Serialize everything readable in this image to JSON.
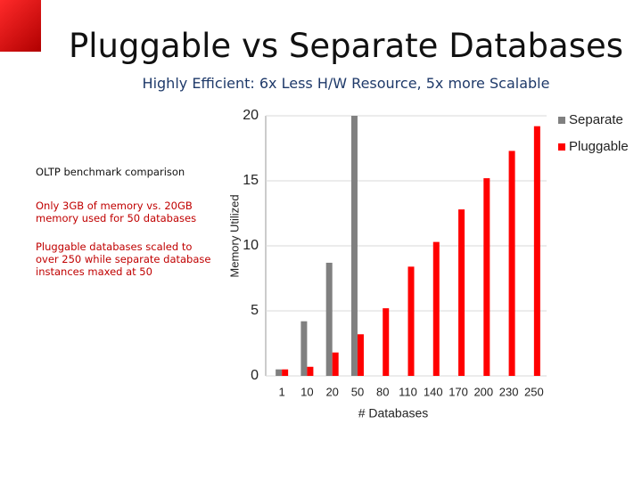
{
  "title": "Pluggable vs Separate Databases",
  "subtitle": "Highly Efficient:  6x Less H/W Resource, 5x more Scalable",
  "notes": [
    "OLTP benchmark comparison",
    "Only 3GB of memory vs. 20GB memory used for 50 databases",
    "Pluggable databases scaled to over 250 while separate database instances maxed at 50"
  ],
  "chart_data": {
    "type": "bar",
    "x_label": "# Databases",
    "y_label": "Memory Utilized",
    "categories": [
      "1",
      "10",
      "20",
      "50",
      "80",
      "110",
      "140",
      "170",
      "200",
      "230",
      "250"
    ],
    "series": [
      {
        "name": "Separate",
        "color": "#808080",
        "values": [
          0.5,
          4.2,
          8.7,
          20,
          null,
          null,
          null,
          null,
          null,
          null,
          null
        ]
      },
      {
        "name": "Pluggable",
        "color": "#ff0000",
        "values": [
          0.5,
          0.7,
          1.8,
          3.2,
          5.2,
          8.4,
          10.3,
          12.8,
          15.2,
          17.3,
          19.2
        ]
      }
    ],
    "ylim": [
      0,
      20
    ],
    "yticks": [
      0,
      5,
      10,
      15,
      20
    ],
    "grid": true,
    "legend": "right"
  }
}
